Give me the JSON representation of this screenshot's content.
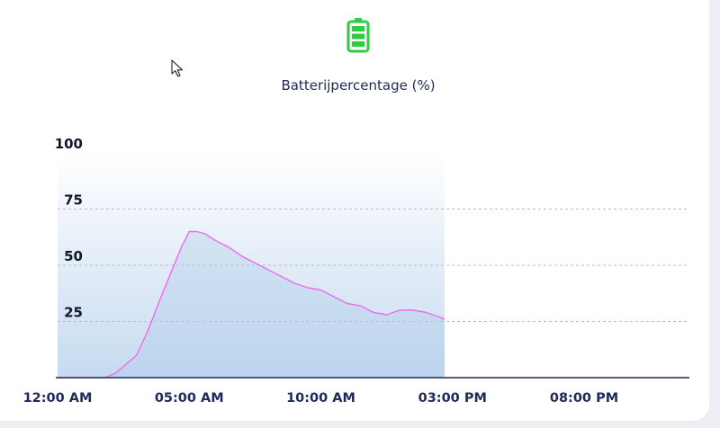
{
  "chart_data": {
    "type": "area",
    "title": "Batterijpercentage (%)",
    "xlabel": "",
    "ylabel": "",
    "x_tick_labels": [
      "12:00 AM",
      "05:00 AM",
      "10:00 AM",
      "03:00 PM",
      "08:00 PM"
    ],
    "x_tick_hours": [
      0,
      5,
      10,
      15,
      20
    ],
    "xlim_hours": [
      0,
      24
    ],
    "y_tick_labels": [
      "100",
      "75",
      "50",
      "25"
    ],
    "y_ticks": [
      100,
      75,
      50,
      25
    ],
    "ylim": [
      0,
      100
    ],
    "grid": "horizontal dashed",
    "line_color": "#ee6bf0",
    "fill_color": "#a9c8e8",
    "series": [
      {
        "x_hours": [
          0,
          1.8,
          2.2,
          2.6,
          3.0,
          3.4,
          4.0,
          4.7,
          5.0,
          5.3,
          5.6,
          6.0,
          6.5,
          7.0,
          7.5,
          8.0,
          8.5,
          9.0,
          9.5,
          10.0,
          10.5,
          11.0,
          11.5,
          12.0,
          12.5,
          13.0,
          13.5,
          14.0,
          14.5,
          14.7
        ],
        "values": [
          0,
          0,
          2,
          6,
          10,
          20,
          38,
          58,
          65,
          65,
          64,
          61,
          58,
          54,
          51,
          48,
          45,
          42,
          40,
          39,
          36,
          33,
          32,
          29,
          28,
          30,
          30,
          29,
          27,
          26
        ]
      }
    ]
  },
  "header": {
    "battery_icon": "battery-full-icon",
    "battery_color": "#2ecc40",
    "cursor_icon": "mouse-pointer-icon"
  }
}
